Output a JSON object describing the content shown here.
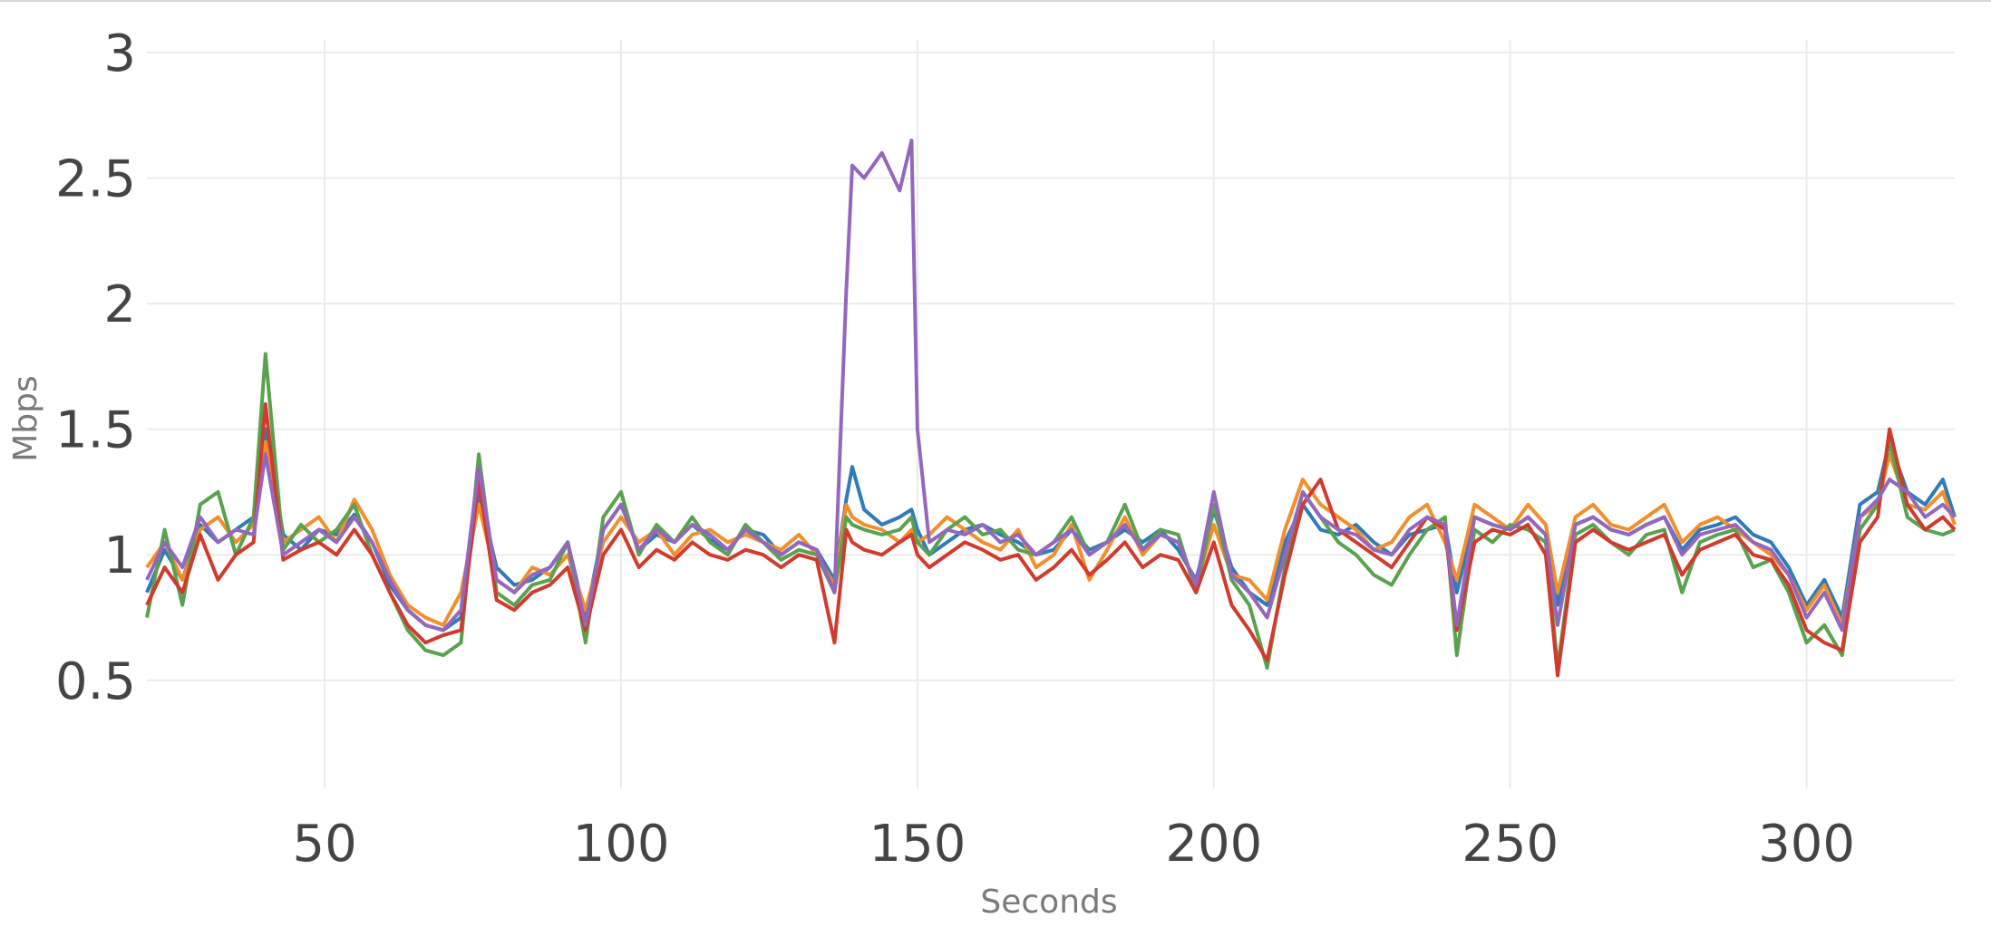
{
  "chart_data": {
    "type": "line",
    "title": "",
    "xlabel": "Seconds",
    "ylabel": "Mbps",
    "xlim": [
      20,
      325
    ],
    "ylim": [
      0.07,
      3.05
    ],
    "x_ticks": [
      50,
      100,
      150,
      200,
      250,
      300
    ],
    "y_ticks": [
      0.5,
      1,
      1.5,
      2,
      2.5,
      3
    ],
    "x_tick_labels": [
      "50",
      "100",
      "150",
      "200",
      "250",
      "300"
    ],
    "y_tick_labels": [
      "0.5",
      "1",
      "1.5",
      "2",
      "2.5",
      "3"
    ],
    "grid": true,
    "legend": "none",
    "x": [
      20,
      23,
      26,
      29,
      32,
      35,
      38,
      40,
      43,
      46,
      49,
      52,
      55,
      58,
      61,
      64,
      67,
      70,
      73,
      76,
      79,
      82,
      85,
      88,
      91,
      94,
      97,
      100,
      103,
      106,
      109,
      112,
      115,
      118,
      121,
      124,
      127,
      130,
      133,
      136,
      138,
      139,
      141,
      144,
      147,
      149,
      150,
      152,
      155,
      158,
      161,
      164,
      167,
      170,
      173,
      176,
      179,
      182,
      185,
      188,
      191,
      194,
      197,
      200,
      203,
      206,
      209,
      212,
      215,
      218,
      221,
      224,
      227,
      230,
      233,
      236,
      239,
      241,
      244,
      247,
      250,
      253,
      256,
      258,
      261,
      264,
      267,
      270,
      273,
      276,
      279,
      282,
      285,
      288,
      291,
      294,
      297,
      300,
      303,
      306,
      309,
      312,
      314,
      317,
      320,
      323,
      325
    ],
    "series": [
      {
        "color": "#2f7ab9",
        "values": [
          0.85,
          1.02,
          0.9,
          1.12,
          1.05,
          1.1,
          1.15,
          1.5,
          1.08,
          1.02,
          1.1,
          1.08,
          1.16,
          1.05,
          0.88,
          0.78,
          0.72,
          0.7,
          0.75,
          1.25,
          0.95,
          0.88,
          0.9,
          0.95,
          1.05,
          0.75,
          1.1,
          1.2,
          1.02,
          1.08,
          1.05,
          1.12,
          1.06,
          1.02,
          1.1,
          1.08,
          1.0,
          1.05,
          1.02,
          0.9,
          1.22,
          1.35,
          1.18,
          1.12,
          1.15,
          1.18,
          1.1,
          1.0,
          1.05,
          1.1,
          1.12,
          1.08,
          1.05,
          1.0,
          1.02,
          1.1,
          1.02,
          1.05,
          1.1,
          1.05,
          1.1,
          1.02,
          0.9,
          1.18,
          0.95,
          0.85,
          0.8,
          1.05,
          1.2,
          1.1,
          1.08,
          1.12,
          1.05,
          1.0,
          1.08,
          1.1,
          1.12,
          0.85,
          1.15,
          1.12,
          1.1,
          1.15,
          1.08,
          0.8,
          1.12,
          1.15,
          1.1,
          1.08,
          1.12,
          1.15,
          1.02,
          1.1,
          1.12,
          1.15,
          1.08,
          1.05,
          0.95,
          0.8,
          0.9,
          0.75,
          1.2,
          1.25,
          1.45,
          1.25,
          1.2,
          1.3,
          1.15
        ]
      },
      {
        "color": "#f28e2b",
        "values": [
          0.95,
          1.05,
          0.9,
          1.1,
          1.15,
          1.05,
          1.12,
          1.45,
          1.05,
          1.1,
          1.15,
          1.05,
          1.22,
          1.1,
          0.92,
          0.8,
          0.75,
          0.72,
          0.85,
          1.2,
          0.9,
          0.85,
          0.95,
          0.92,
          1.0,
          0.78,
          1.05,
          1.15,
          1.05,
          1.1,
          1.0,
          1.08,
          1.1,
          1.05,
          1.08,
          1.05,
          1.02,
          1.08,
          1.0,
          0.88,
          1.2,
          1.15,
          1.12,
          1.1,
          1.05,
          1.1,
          1.05,
          1.08,
          1.15,
          1.1,
          1.05,
          1.02,
          1.1,
          0.95,
          1.0,
          1.12,
          0.9,
          1.02,
          1.15,
          1.0,
          1.08,
          1.05,
          0.88,
          1.12,
          0.92,
          0.9,
          0.82,
          1.1,
          1.3,
          1.2,
          1.15,
          1.1,
          1.02,
          1.05,
          1.15,
          1.2,
          1.05,
          0.9,
          1.2,
          1.15,
          1.1,
          1.2,
          1.12,
          0.85,
          1.15,
          1.2,
          1.12,
          1.1,
          1.15,
          1.2,
          1.05,
          1.12,
          1.15,
          1.1,
          1.05,
          1.0,
          0.92,
          0.78,
          0.88,
          0.72,
          1.15,
          1.2,
          1.4,
          1.2,
          1.18,
          1.25,
          1.12
        ]
      },
      {
        "color": "#59a14f",
        "values": [
          0.75,
          1.1,
          0.8,
          1.2,
          1.25,
          1.0,
          1.15,
          1.8,
          1.02,
          1.12,
          1.05,
          1.1,
          1.2,
          1.0,
          0.85,
          0.7,
          0.62,
          0.6,
          0.65,
          1.4,
          0.85,
          0.8,
          0.88,
          0.9,
          1.05,
          0.65,
          1.15,
          1.25,
          1.0,
          1.12,
          1.05,
          1.15,
          1.05,
          1.0,
          1.12,
          1.05,
          0.98,
          1.02,
          1.0,
          0.85,
          1.15,
          1.12,
          1.1,
          1.08,
          1.1,
          1.15,
          1.05,
          1.0,
          1.1,
          1.15,
          1.08,
          1.1,
          1.02,
          1.0,
          1.05,
          1.15,
          1.0,
          1.05,
          1.2,
          1.02,
          1.1,
          1.08,
          0.85,
          1.2,
          0.9,
          0.8,
          0.55,
          0.95,
          1.25,
          1.15,
          1.05,
          1.0,
          0.92,
          0.88,
          1.0,
          1.1,
          1.15,
          0.6,
          1.1,
          1.05,
          1.12,
          1.1,
          1.05,
          0.55,
          1.08,
          1.12,
          1.05,
          1.0,
          1.08,
          1.1,
          0.85,
          1.05,
          1.08,
          1.1,
          0.95,
          0.98,
          0.85,
          0.65,
          0.72,
          0.6,
          1.1,
          1.2,
          1.45,
          1.15,
          1.1,
          1.08,
          1.1
        ]
      },
      {
        "color": "#d03b2e",
        "values": [
          0.8,
          0.95,
          0.85,
          1.08,
          0.9,
          1.0,
          1.05,
          1.6,
          0.98,
          1.02,
          1.05,
          1.0,
          1.1,
          1.0,
          0.85,
          0.72,
          0.65,
          0.68,
          0.7,
          1.3,
          0.82,
          0.78,
          0.85,
          0.88,
          0.95,
          0.7,
          1.0,
          1.1,
          0.95,
          1.02,
          0.98,
          1.05,
          1.0,
          0.98,
          1.02,
          1.0,
          0.95,
          1.0,
          0.98,
          0.65,
          1.1,
          1.05,
          1.02,
          1.0,
          1.05,
          1.08,
          1.0,
          0.95,
          1.0,
          1.05,
          1.02,
          0.98,
          1.0,
          0.9,
          0.95,
          1.02,
          0.92,
          0.98,
          1.05,
          0.95,
          1.0,
          0.98,
          0.85,
          1.05,
          0.8,
          0.7,
          0.58,
          0.92,
          1.2,
          1.3,
          1.1,
          1.05,
          1.0,
          0.95,
          1.05,
          1.15,
          1.1,
          0.7,
          1.05,
          1.1,
          1.08,
          1.12,
          1.0,
          0.52,
          1.05,
          1.1,
          1.05,
          1.02,
          1.05,
          1.08,
          0.92,
          1.02,
          1.05,
          1.08,
          1.0,
          0.98,
          0.88,
          0.7,
          0.65,
          0.62,
          1.05,
          1.15,
          1.5,
          1.2,
          1.1,
          1.15,
          1.1
        ]
      },
      {
        "color": "#9467bd",
        "values": [
          0.9,
          1.05,
          0.95,
          1.15,
          1.05,
          1.1,
          1.08,
          1.4,
          1.0,
          1.05,
          1.1,
          1.05,
          1.15,
          1.05,
          0.9,
          0.78,
          0.72,
          0.7,
          0.78,
          1.35,
          0.9,
          0.85,
          0.92,
          0.95,
          1.05,
          0.72,
          1.1,
          1.2,
          1.02,
          1.1,
          1.05,
          1.12,
          1.08,
          1.02,
          1.1,
          1.05,
          1.0,
          1.05,
          1.02,
          0.85,
          2.05,
          2.55,
          2.5,
          2.6,
          2.45,
          2.65,
          1.5,
          1.05,
          1.1,
          1.08,
          1.12,
          1.05,
          1.08,
          1.0,
          1.05,
          1.1,
          1.0,
          1.05,
          1.12,
          1.02,
          1.08,
          1.05,
          0.88,
          1.25,
          0.92,
          0.85,
          0.75,
          1.0,
          1.25,
          1.15,
          1.1,
          1.08,
          1.02,
          1.0,
          1.1,
          1.15,
          1.12,
          0.72,
          1.15,
          1.12,
          1.1,
          1.15,
          1.08,
          0.72,
          1.12,
          1.15,
          1.1,
          1.08,
          1.12,
          1.15,
          1.0,
          1.08,
          1.1,
          1.12,
          1.05,
          1.02,
          0.92,
          0.75,
          0.85,
          0.7,
          1.15,
          1.22,
          1.3,
          1.25,
          1.15,
          1.2,
          1.15
        ]
      }
    ]
  }
}
